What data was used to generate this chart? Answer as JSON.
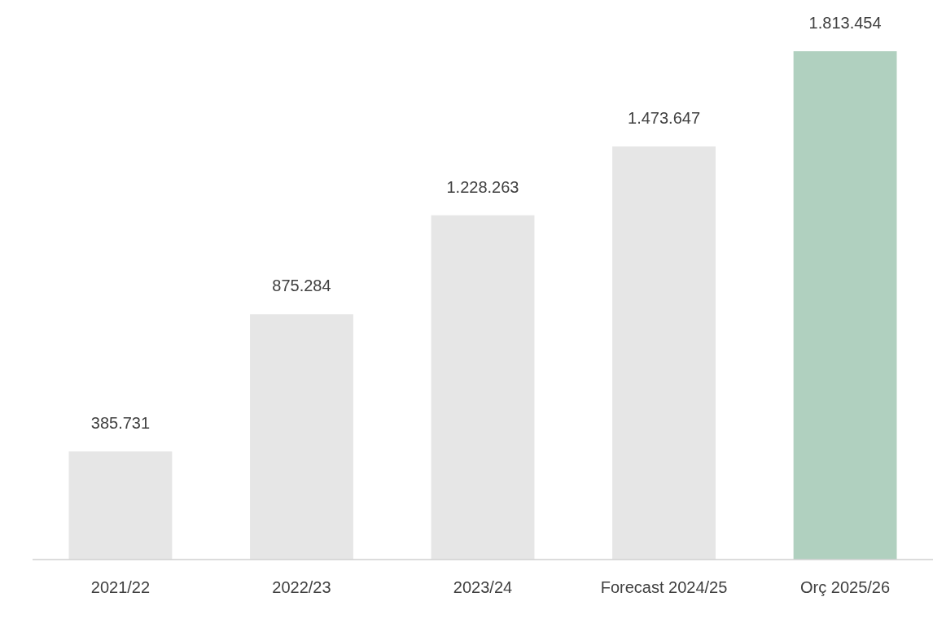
{
  "chart_data": {
    "type": "bar",
    "categories": [
      "2021/22",
      "2022/23",
      "2023/24",
      "Forecast 2024/25",
      "Orç 2025/26"
    ],
    "values": [
      385731,
      875284,
      1228263,
      1473647,
      1813454
    ],
    "colors": [
      "#e6e6e6",
      "#e6e6e6",
      "#e6e6e6",
      "#e6e6e6",
      "#b0d0bf"
    ],
    "value_labels": [
      "385.731",
      "875.284",
      "1.228.263",
      "1.473.647",
      "1.813.454"
    ],
    "data_labels": false
  }
}
